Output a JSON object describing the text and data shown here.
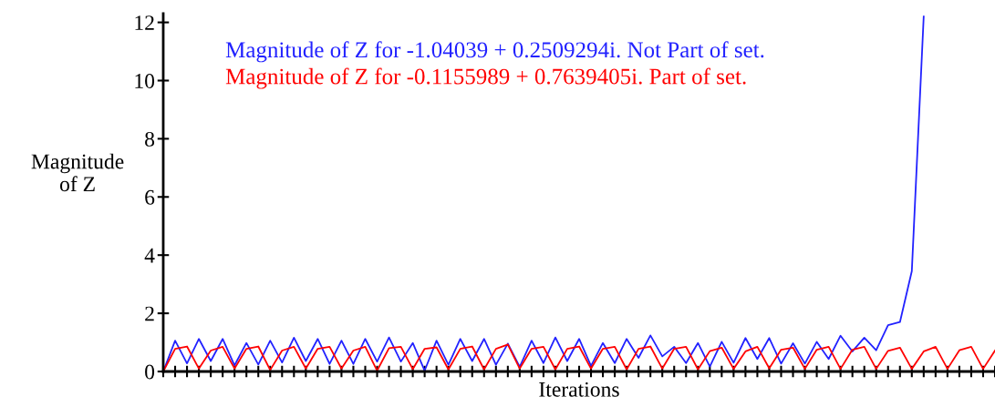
{
  "chart_data": {
    "type": "line",
    "xlabel": "Iterations",
    "ylabel": "Magnitude\nof Z",
    "categories": [
      null,
      null,
      null,
      null,
      null,
      null,
      null,
      null,
      null,
      null,
      null,
      null,
      null,
      null,
      null,
      null,
      null,
      null,
      null,
      null,
      null,
      null,
      null,
      null,
      null,
      null,
      null,
      null,
      null,
      null,
      null,
      null,
      null,
      null,
      null,
      null,
      null,
      null,
      null,
      null,
      null,
      null,
      null,
      null,
      null,
      null,
      null,
      null,
      null,
      null,
      null,
      null,
      null,
      null,
      null,
      null,
      null,
      null,
      null,
      null,
      null,
      null,
      null,
      null,
      null,
      null,
      null,
      null,
      null,
      null,
      null
    ],
    "ylim": [
      0,
      12.3
    ],
    "yticks": [
      0,
      2,
      4,
      6,
      8,
      10,
      12
    ],
    "grid": false,
    "legend": "top left",
    "marker": "none",
    "line_style": "solid",
    "series": [
      {
        "name": "Magnitude of Z for -1.04039 + 0.2509294i. Not Part of set.",
        "color": "#2222ff",
        "values": [
          0,
          1.06,
          0.28,
          1.12,
          0.36,
          1.12,
          0.21,
          0.98,
          0.24,
          1.06,
          0.31,
          1.16,
          0.36,
          1.12,
          0.26,
          1.06,
          0.26,
          1.12,
          0.34,
          1.17,
          0.34,
          0.98,
          0.03,
          1.06,
          0.23,
          1.12,
          0.36,
          1.12,
          0.23,
          0.96,
          0.16,
          1.06,
          0.29,
          1.17,
          0.36,
          1.12,
          0.19,
          0.98,
          0.29,
          1.12,
          0.47,
          1.24,
          0.52,
          0.85,
          0.29,
          0.98,
          0.17,
          1.02,
          0.3,
          1.15,
          0.43,
          1.15,
          0.27,
          0.97,
          0.27,
          1.02,
          0.43,
          1.23,
          0.69,
          1.16,
          0.73,
          1.59,
          1.7,
          3.45,
          12.2,
          null,
          null,
          null,
          null,
          null,
          null
        ]
      },
      {
        "name": "Magnitude of Z for -0.1155989 + 0.7639405i. Part of set.",
        "color": "#ff0000",
        "values": [
          0,
          0.78,
          0.86,
          0.1,
          0.72,
          0.85,
          0.1,
          0.78,
          0.86,
          0.05,
          0.72,
          0.85,
          0.1,
          0.78,
          0.85,
          0.1,
          0.72,
          0.85,
          0.03,
          0.8,
          0.85,
          0.08,
          0.78,
          0.83,
          0.07,
          0.78,
          0.86,
          0.07,
          0.78,
          0.93,
          0.1,
          0.78,
          0.85,
          0.07,
          0.78,
          0.86,
          0.1,
          0.78,
          0.85,
          0.07,
          0.78,
          0.86,
          0.1,
          0.78,
          0.85,
          0.07,
          0.7,
          0.82,
          0.09,
          0.69,
          0.85,
          0.11,
          0.75,
          0.82,
          0.09,
          0.75,
          0.85,
          0.09,
          0.75,
          0.85,
          0.09,
          0.71,
          0.82,
          0.09,
          0.69,
          0.85,
          0.09,
          0.73,
          0.85,
          0.09,
          0.72
        ]
      }
    ]
  }
}
